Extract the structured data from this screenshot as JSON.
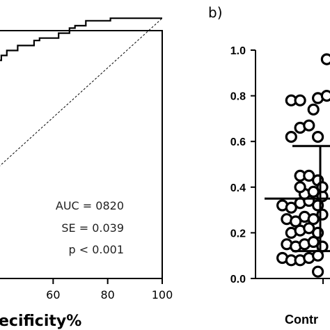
{
  "chart_data": [
    {
      "type": "line",
      "panel": "a",
      "xlabel": "ecificity%",
      "xticks": [
        60,
        80,
        100
      ],
      "xlim": [
        40,
        100
      ],
      "ylim": [
        0,
        100
      ],
      "annotations": [
        "AUC = 0820",
        "SE = 0.039",
        "p < 0.001"
      ],
      "series": [
        {
          "x": [
            40,
            41,
            41,
            43,
            43,
            47,
            47,
            53,
            53,
            55,
            55,
            62,
            62,
            66,
            66,
            68,
            68,
            72,
            72,
            81,
            81,
            100
          ],
          "y": [
            88,
            88,
            90,
            90,
            92,
            92,
            94,
            94,
            96,
            96,
            97,
            97,
            99,
            99,
            101,
            101,
            102,
            102,
            104,
            104,
            105,
            105
          ]
        },
        {
          "x": [
            40,
            100
          ],
          "y": [
            45,
            105
          ]
        }
      ]
    },
    {
      "type": "scatter",
      "panel_label": "b)",
      "categories": [
        "Contr"
      ],
      "yticks": [
        "0.0",
        "0.2",
        "0.4",
        "0.6",
        "0.8",
        "1.0"
      ],
      "ylim": [
        0,
        1
      ],
      "mean": 0.35,
      "sd_upper": 0.58,
      "sd_lower": 0.12,
      "points": [
        [
          -0.68,
          0.09
        ],
        [
          -0.46,
          0.08
        ],
        [
          -0.24,
          0.08
        ],
        [
          -0.02,
          0.09
        ],
        [
          0.2,
          0.1
        ],
        [
          -0.57,
          0.15
        ],
        [
          -0.35,
          0.14
        ],
        [
          -0.13,
          0.15
        ],
        [
          0.09,
          0.16
        ],
        [
          0.31,
          0.14
        ],
        [
          -0.46,
          0.2
        ],
        [
          -0.24,
          0.21
        ],
        [
          -0.02,
          0.22
        ],
        [
          0.2,
          0.2
        ],
        [
          -0.57,
          0.26
        ],
        [
          -0.35,
          0.25
        ],
        [
          -0.13,
          0.27
        ],
        [
          0.09,
          0.26
        ],
        [
          0.31,
          0.28
        ],
        [
          -0.68,
          0.32
        ],
        [
          -0.46,
          0.31
        ],
        [
          -0.24,
          0.33
        ],
        [
          -0.02,
          0.34
        ],
        [
          0.2,
          0.32
        ],
        [
          -0.13,
          0.37
        ],
        [
          0.09,
          0.38
        ],
        [
          0.31,
          0.36
        ],
        [
          -0.24,
          0.4
        ],
        [
          0.2,
          0.43
        ],
        [
          0.31,
          0.4
        ],
        [
          -0.24,
          0.45
        ],
        [
          -0.02,
          0.45
        ],
        [
          -0.46,
          0.62
        ],
        [
          -0.24,
          0.66
        ],
        [
          0.2,
          0.62
        ],
        [
          -0.02,
          0.67
        ],
        [
          -0.46,
          0.78
        ],
        [
          -0.24,
          0.78
        ],
        [
          0.09,
          0.74
        ],
        [
          0.2,
          0.79
        ],
        [
          0.42,
          0.8
        ],
        [
          0.42,
          0.96
        ],
        [
          0.2,
          0.03
        ]
      ]
    }
  ]
}
